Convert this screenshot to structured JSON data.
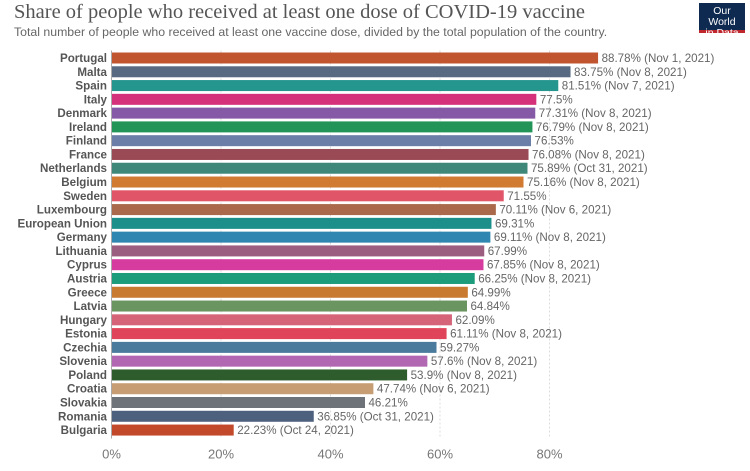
{
  "header": {
    "title": "Share of people who received at least one dose of COVID-19 vaccine",
    "subtitle": "Total number of people who received at least one vaccine dose, divided by the total population of the country.",
    "logo": "Our World in Data",
    "logo_line1": "Our World",
    "logo_line2": "in Data"
  },
  "chart_data": {
    "type": "bar",
    "orientation": "horizontal",
    "title": "Share of people who received at least one dose of COVID-19 vaccine",
    "xlim": [
      0,
      100
    ],
    "xticks": [
      "0%",
      "20%",
      "40%",
      "60%",
      "80%"
    ],
    "xtick_values": [
      0,
      20,
      40,
      60,
      80
    ],
    "grid": true,
    "categories": [
      "Portugal",
      "Malta",
      "Spain",
      "Italy",
      "Denmark",
      "Ireland",
      "Finland",
      "France",
      "Netherlands",
      "Belgium",
      "Sweden",
      "Luxembourg",
      "European Union",
      "Germany",
      "Lithuania",
      "Cyprus",
      "Austria",
      "Greece",
      "Latvia",
      "Hungary",
      "Estonia",
      "Czechia",
      "Slovenia",
      "Poland",
      "Croatia",
      "Slovakia",
      "Romania",
      "Bulgaria"
    ],
    "values": [
      88.78,
      83.75,
      81.51,
      77.5,
      77.31,
      76.79,
      76.53,
      76.08,
      75.89,
      75.16,
      71.55,
      70.11,
      69.31,
      69.11,
      67.99,
      67.85,
      66.25,
      64.99,
      64.84,
      62.09,
      61.11,
      59.27,
      57.6,
      53.9,
      47.74,
      46.21,
      36.85,
      22.23
    ],
    "labels": [
      "88.78% (Nov 1, 2021)",
      "83.75% (Nov 8, 2021)",
      "81.51% (Nov 7, 2021)",
      "77.5%",
      "77.31% (Nov 8, 2021)",
      "76.79% (Nov 8, 2021)",
      "76.53%",
      "76.08% (Nov 8, 2021)",
      "75.89% (Oct 31, 2021)",
      "75.16% (Nov 8, 2021)",
      "71.55%",
      "70.11% (Nov 6, 2021)",
      "69.31%",
      "69.11% (Nov 8, 2021)",
      "67.99%",
      "67.85% (Nov 8, 2021)",
      "66.25% (Nov 8, 2021)",
      "64.99%",
      "64.84%",
      "62.09%",
      "61.11% (Nov 8, 2021)",
      "59.27%",
      "57.6% (Nov 8, 2021)",
      "53.9% (Nov 8, 2021)",
      "47.74% (Nov 6, 2021)",
      "46.21%",
      "36.85% (Oct 31, 2021)",
      "22.23% (Oct 24, 2021)"
    ],
    "colors": [
      "#c05530",
      "#586a82",
      "#25968e",
      "#d5317a",
      "#8559a5",
      "#229457",
      "#6a7ea8",
      "#9a4a55",
      "#3f8778",
      "#d07a32",
      "#e05568",
      "#a9694a",
      "#1d8f8a",
      "#2f86b0",
      "#9c5e80",
      "#d63b9e",
      "#1d9c7c",
      "#c77a30",
      "#6b9560",
      "#d56479",
      "#e0445a",
      "#4a7a9c",
      "#b167b1",
      "#2f5c2c",
      "#c79e74",
      "#6e737a",
      "#4d607e",
      "#c24a2b"
    ]
  }
}
